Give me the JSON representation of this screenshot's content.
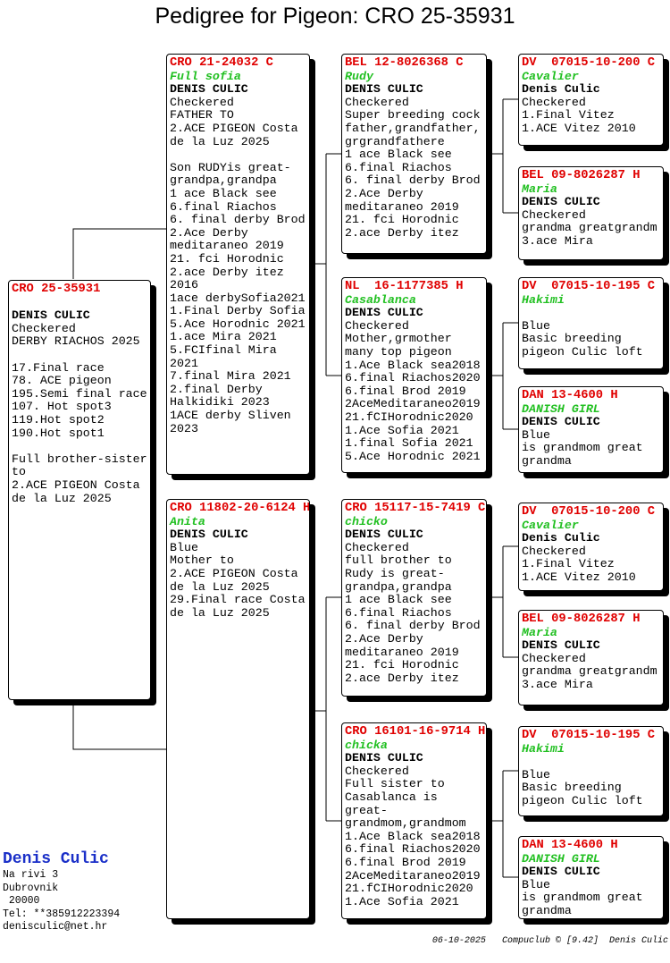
{
  "header": {
    "title": "Pedigree for Pigeon: CRO 25-35931"
  },
  "birds": {
    "subject": {
      "ring": "CRO 25-35931",
      "owner": "DENIS CULIC",
      "paragraphs": [
        [
          "Checkered",
          "DERBY RIACHOS 2025"
        ],
        [
          "17.Final race",
          "78. ACE pigeon",
          "195.Semi final race",
          "107. Hot spot3",
          "119.Hot spot2",
          "190.Hot spot1"
        ],
        [
          "Full brother-sister",
          "to",
          "2.ACE PIGEON Costa",
          "de la Luz 2025"
        ]
      ]
    },
    "father": {
      "ring": "CRO 21-24032 C",
      "name": "Full sofia",
      "owner": "DENIS CULIC",
      "paragraphs": [
        [
          "Checkered",
          "FATHER TO",
          "2.ACE PIGEON Costa",
          "de la Luz 2025"
        ],
        [
          "Son RUDYis great-",
          "grandpa,grandpa",
          "1 ace Black see",
          "6.final Riachos",
          "6. final derby Brod",
          "2.Ace Derby",
          "meditaraneo 2019",
          "21. fci Horodnic",
          "2.ace Derby itez",
          "2016",
          "1ace derbySofia2021",
          "1.Final Derby Sofia",
          "5.Ace Horodnic 2021",
          "1.ace Mira 2021",
          "5.FCIfinal Mira",
          "2021",
          "7.final Mira 2021",
          "2.final Derby",
          "Halkidiki 2023",
          "1ACE derby Sliven",
          "2023"
        ]
      ]
    },
    "mother": {
      "ring": "CRO 11802-20-6124 H",
      "name": "Anita",
      "owner": "DENIS CULIC",
      "paragraphs": [
        [
          "Blue",
          "Mother to",
          "2.ACE PIGEON Costa",
          "de la Luz 2025",
          "29.Final race Costa",
          "de la Luz 2025"
        ]
      ]
    },
    "ff": {
      "ring": "BEL 12-8026368 C",
      "name": "Rudy",
      "owner": "DENIS CULIC",
      "paragraphs": [
        [
          "Checkered",
          "Super breeding cock",
          "father,grandfather,",
          "grgrandfathere",
          "1 ace Black see",
          "6.final Riachos",
          "6. final derby Brod",
          "2.Ace Derby",
          "meditaraneo 2019",
          "21. fci Horodnic",
          "2.ace Derby itez"
        ]
      ]
    },
    "fm": {
      "ring": "NL  16-1177385 H",
      "name": "Casablanca",
      "owner": "DENIS CULIC",
      "paragraphs": [
        [
          "Checkered",
          "Mother,grmother",
          "many top pigeon",
          "1.Ace Black sea2018",
          "6.final Riachos2020",
          "6.final Brod 2019",
          "2AceMeditaraneo2019",
          "21.fCIHorodnic2020",
          "1.Ace Sofia 2021",
          "1.final Sofia 2021",
          "5.Ace Horodnic 2021"
        ]
      ]
    },
    "mf": {
      "ring": "CRO 15117-15-7419 C",
      "name": "chicko",
      "owner": "DENIS CULIC",
      "paragraphs": [
        [
          "Checkered",
          "full brother to",
          "Rudy is great-",
          "grandpa,grandpa",
          "1 ace Black see",
          "6.final Riachos",
          "6. final derby Brod",
          "2.Ace Derby",
          "meditaraneo 2019",
          "21. fci Horodnic",
          "2.ace Derby itez"
        ]
      ]
    },
    "mm": {
      "ring": "CRO 16101-16-9714 H",
      "name": "chicka",
      "owner": "DENIS CULIC",
      "paragraphs": [
        [
          "Checkered",
          "Full sister to",
          "Casablanca is",
          "great-",
          "grandmom,grandmom",
          "1.Ace Black sea2018",
          "6.final Riachos2020",
          "6.final Brod 2019",
          "2AceMeditaraneo2019",
          "21.fCIHorodnic2020",
          "1.Ace Sofia 2021"
        ]
      ]
    },
    "fff": {
      "ring": "DV  07015-10-200 C",
      "name": "Cavalier",
      "owner": "Denis Culic",
      "paragraphs": [
        [
          "Checkered",
          "1.Final Vitez",
          "1.ACE Vitez 2010"
        ]
      ]
    },
    "ffm": {
      "ring": "BEL 09-8026287 H",
      "name": "Maria",
      "owner": "DENIS CULIC",
      "paragraphs": [
        [
          "Checkered",
          "grandma greatgrandm",
          "3.ace Mira"
        ]
      ]
    },
    "fmf": {
      "ring": "DV  07015-10-195 C",
      "name": "Hakimi",
      "paragraphs": [
        [
          "Blue",
          "Basic breeding",
          "pigeon Culic loft"
        ]
      ]
    },
    "fmm": {
      "ring": "DAN 13-4600 H",
      "name": "DANISH GIRL",
      "owner": "DENIS CULIC",
      "paragraphs": [
        [
          "Blue",
          "is grandmom great",
          "grandma"
        ]
      ]
    },
    "mff": {
      "ring": "DV  07015-10-200 C",
      "name": "Cavalier",
      "owner": "Denis Culic",
      "paragraphs": [
        [
          "Checkered",
          "1.Final Vitez",
          "1.ACE Vitez 2010"
        ]
      ]
    },
    "mfm": {
      "ring": "BEL 09-8026287 H",
      "name": "Maria",
      "owner": "DENIS CULIC",
      "paragraphs": [
        [
          "Checkered",
          "grandma greatgrandm",
          "3.ace Mira"
        ]
      ]
    },
    "mmf": {
      "ring": "DV  07015-10-195 C",
      "name": "Hakimi",
      "paragraphs": [
        [
          "Blue",
          "Basic breeding",
          "pigeon Culic loft"
        ]
      ]
    },
    "mmm": {
      "ring": "DAN 13-4600 H",
      "name": "DANISH GIRL",
      "owner": "DENIS CULIC",
      "paragraphs": [
        [
          "Blue",
          "is grandmom great",
          "grandma"
        ]
      ]
    }
  },
  "breeder": {
    "name": "Denis Culic",
    "lines": [
      "Na rivi 3",
      "Dubrovnik",
      " 20000",
      "Tel: **385912223394",
      "denisculic@net.hr"
    ]
  },
  "footer": {
    "date": "06-10-2025",
    "software": "Compuclub © [9.42]",
    "author": "Denis Culic"
  }
}
